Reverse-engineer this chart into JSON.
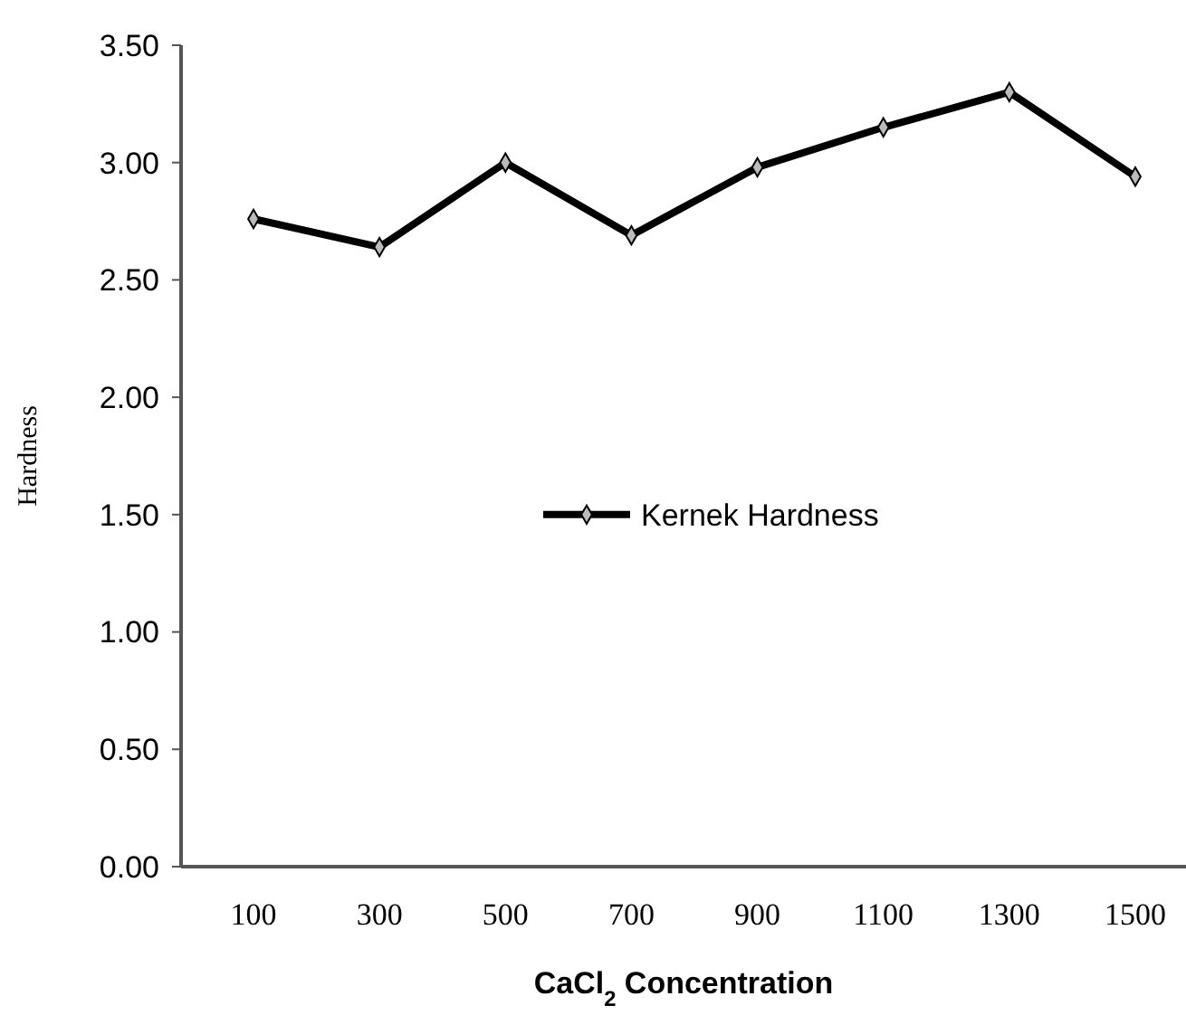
{
  "chart_data": {
    "type": "line",
    "xlabel": "CaCl$_{2}$ Concentration",
    "ylabel": "Hardness",
    "categories": [
      "100",
      "300",
      "500",
      "700",
      "900",
      "1100",
      "1300",
      "1500"
    ],
    "series": [
      {
        "name": "Kernek Hardness",
        "color": "#000000",
        "values": [
          2.76,
          2.64,
          3.0,
          2.69,
          2.98,
          3.15,
          3.3,
          2.94
        ]
      }
    ],
    "ylim": [
      0,
      3.5
    ],
    "yticks": [
      {
        "value": 0,
        "label": "0.00"
      },
      {
        "value": 0.5,
        "label": "0.50"
      },
      {
        "value": 1,
        "label": "1.00"
      },
      {
        "value": 1.5,
        "label": "1.50"
      },
      {
        "value": 2,
        "label": "2.00"
      },
      {
        "value": 2.5,
        "label": "2.50"
      },
      {
        "value": 3,
        "label": "3.00"
      },
      {
        "value": 3.5,
        "label": "3.50"
      }
    ],
    "legend": "center",
    "marker": "diamond"
  }
}
